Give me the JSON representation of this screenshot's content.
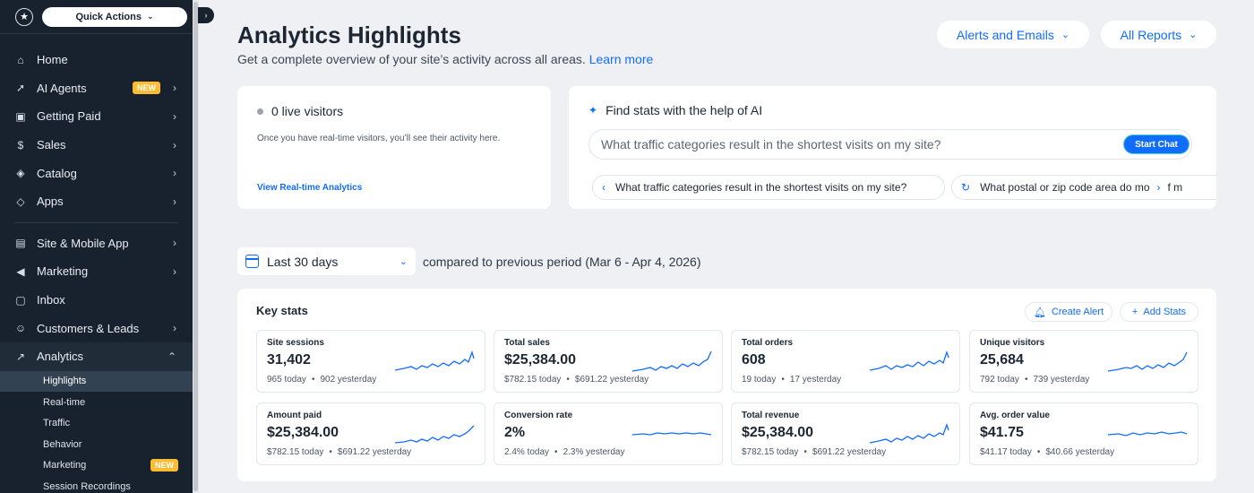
{
  "sidebar": {
    "quick_actions": "Quick Actions",
    "items": [
      {
        "label": "Home",
        "icon": "home-icon"
      },
      {
        "label": "AI Agents",
        "icon": "rocket-icon",
        "badge": "NEW"
      },
      {
        "label": "Getting Paid",
        "icon": "wallet-icon"
      },
      {
        "label": "Sales",
        "icon": "dollar-icon"
      },
      {
        "label": "Catalog",
        "icon": "tag-icon"
      },
      {
        "label": "Apps",
        "icon": "apps-icon"
      },
      {
        "label": "Site & Mobile App",
        "icon": "site-icon"
      },
      {
        "label": "Marketing",
        "icon": "megaphone-icon"
      },
      {
        "label": "Inbox",
        "icon": "inbox-icon"
      },
      {
        "label": "Customers & Leads",
        "icon": "customers-icon"
      },
      {
        "label": "Analytics",
        "icon": "chart-icon"
      }
    ],
    "sub_items": [
      {
        "label": "Highlights"
      },
      {
        "label": "Real-time"
      },
      {
        "label": "Traffic"
      },
      {
        "label": "Behavior"
      },
      {
        "label": "Marketing",
        "badge": "NEW"
      },
      {
        "label": "Session Recordings"
      }
    ]
  },
  "header": {
    "title": "Analytics Highlights",
    "subtitle": "Get a complete overview of your site’s activity across all areas.",
    "learn_more": "Learn more",
    "alerts_button": "Alerts and Emails",
    "reports_button": "All Reports"
  },
  "live": {
    "title": "0 live visitors",
    "description": "Once you have real-time visitors, you’ll see their activity here.",
    "link": "View Real-time Analytics"
  },
  "ai": {
    "title": "Find stats with the help of AI",
    "placeholder": "What traffic categories result in the shortest visits on my site?",
    "start_chat": "Start Chat",
    "chips": [
      "What traffic categories result in the shortest visits on my site?",
      "What postal or zip code area do mo",
      "f m"
    ]
  },
  "date": {
    "range": "Last 30 days",
    "compare": "compared to previous period (Mar 6 - Apr 4, 2026)"
  },
  "key_stats": {
    "title": "Key stats",
    "create_alert": "Create Alert",
    "add_stats": "Add Stats",
    "tiles": [
      {
        "name": "Site sessions",
        "value": "31,402",
        "today": "965 today",
        "yesterday": "902 yesterday"
      },
      {
        "name": "Total sales",
        "value": "$25,384.00",
        "today": "$782.15 today",
        "yesterday": "$691.22 yesterday"
      },
      {
        "name": "Total orders",
        "value": "608",
        "today": "19 today",
        "yesterday": "17 yesterday"
      },
      {
        "name": "Unique visitors",
        "value": "25,684",
        "today": "792 today",
        "yesterday": "739 yesterday"
      },
      {
        "name": "Amount paid",
        "value": "$25,384.00",
        "today": "$782.15 today",
        "yesterday": "$691.22 yesterday"
      },
      {
        "name": "Conversion rate",
        "value": "2%",
        "today": "2.4% today",
        "yesterday": "2.3% yesterday"
      },
      {
        "name": "Total revenue",
        "value": "$25,384.00",
        "today": "$782.15 today",
        "yesterday": "$691.22 yesterday"
      },
      {
        "name": "Avg. order value",
        "value": "$41.75",
        "today": "$41.17 today",
        "yesterday": "$40.66 yesterday"
      }
    ]
  },
  "colors": {
    "accent": "#116dff",
    "sidebar_bg": "#18222e",
    "badge": "#fbbc32"
  }
}
